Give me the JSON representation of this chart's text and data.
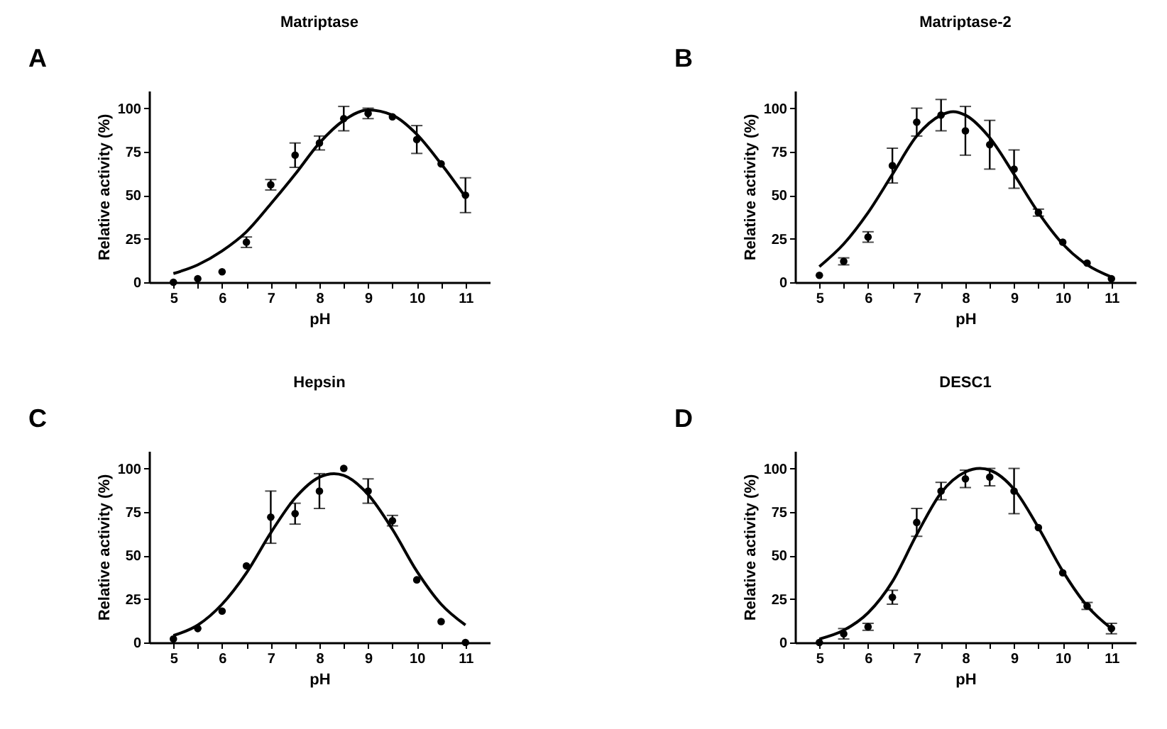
{
  "chart_data": [
    {
      "type": "scatter",
      "title": "Matriptase",
      "xlabel": "pH",
      "ylabel": "Relative activity (%)",
      "annotations": [
        "A"
      ],
      "marker": "circle",
      "xlim": [
        4.5,
        11.5
      ],
      "ylim": [
        0,
        110
      ],
      "xticks": [
        5,
        {
          "value": 5.5,
          "label": null
        },
        6,
        {
          "value": 6.5,
          "label": null
        },
        7,
        {
          "value": 7.5,
          "label": null
        },
        8,
        {
          "value": 8.5,
          "label": null
        },
        9,
        {
          "value": 9.5,
          "label": null
        },
        10,
        {
          "value": 10.5,
          "label": null
        },
        11
      ],
      "yticks": [
        0,
        25,
        50,
        75,
        100
      ],
      "x": [
        5,
        5.5,
        6,
        6.5,
        7,
        7.5,
        8,
        8.5,
        9,
        9.5,
        10,
        10.5,
        11
      ],
      "series": [
        {
          "color": "#000000",
          "values": [
            0,
            2,
            6,
            23,
            56,
            73,
            80,
            94,
            97,
            95,
            82,
            68,
            50
          ],
          "errors": [
            null,
            null,
            null,
            3,
            3,
            7,
            4,
            7,
            3,
            null,
            8,
            null,
            10
          ]
        },
        {
          "type": "line",
          "marker": "none",
          "color": "#000000",
          "x": [
            5,
            5.5,
            6,
            6.5,
            7,
            7.5,
            8,
            8.5,
            9,
            9.5,
            10,
            10.5,
            11
          ],
          "values": [
            5,
            10,
            18,
            29,
            45,
            62,
            80,
            93,
            99,
            96,
            85,
            68,
            49
          ]
        }
      ]
    },
    {
      "type": "scatter",
      "title": "Matriptase-2",
      "xlabel": "pH",
      "ylabel": "Relative activity (%)",
      "annotations": [
        "B"
      ],
      "marker": "circle",
      "xlim": [
        4.5,
        11.5
      ],
      "ylim": [
        0,
        110
      ],
      "xticks": [
        5,
        {
          "value": 5.5,
          "label": null
        },
        6,
        {
          "value": 6.5,
          "label": null
        },
        7,
        {
          "value": 7.5,
          "label": null
        },
        8,
        {
          "value": 8.5,
          "label": null
        },
        9,
        {
          "value": 9.5,
          "label": null
        },
        10,
        {
          "value": 10.5,
          "label": null
        },
        11
      ],
      "yticks": [
        0,
        25,
        50,
        75,
        100
      ],
      "x": [
        5,
        5.5,
        6,
        6.5,
        7,
        7.5,
        8,
        8.5,
        9,
        9.5,
        10,
        10.5,
        11
      ],
      "series": [
        {
          "color": "#000000",
          "values": [
            4,
            12,
            26,
            67,
            92,
            96,
            87,
            79,
            65,
            40,
            23,
            11,
            2
          ],
          "errors": [
            null,
            2,
            3,
            10,
            8,
            9,
            14,
            14,
            11,
            2,
            null,
            null,
            null
          ]
        },
        {
          "type": "line",
          "marker": "none",
          "color": "#000000",
          "x": [
            5,
            5.5,
            6,
            6.5,
            7,
            7.5,
            7.75,
            8,
            8.5,
            9,
            9.5,
            10,
            10.5,
            11
          ],
          "values": [
            9,
            22,
            40,
            62,
            84,
            96,
            98,
            96,
            83,
            62,
            40,
            22,
            10,
            3
          ]
        }
      ]
    },
    {
      "type": "scatter",
      "title": "Hepsin",
      "xlabel": "pH",
      "ylabel": "Relative activity (%)",
      "annotations": [
        "C"
      ],
      "marker": "circle",
      "xlim": [
        4.5,
        11.5
      ],
      "ylim": [
        0,
        110
      ],
      "xticks": [
        5,
        {
          "value": 5.5,
          "label": null
        },
        6,
        {
          "value": 6.5,
          "label": null
        },
        7,
        {
          "value": 7.5,
          "label": null
        },
        8,
        {
          "value": 8.5,
          "label": null
        },
        9,
        {
          "value": 9.5,
          "label": null
        },
        10,
        {
          "value": 10.5,
          "label": null
        },
        11
      ],
      "yticks": [
        0,
        25,
        50,
        75,
        100
      ],
      "x": [
        5,
        5.5,
        6,
        6.5,
        7,
        7.5,
        8,
        8.5,
        9,
        9.5,
        10,
        10.5,
        11
      ],
      "series": [
        {
          "color": "#000000",
          "values": [
            2,
            8,
            18,
            44,
            72,
            74,
            87,
            100,
            87,
            70,
            36,
            12,
            0
          ],
          "errors": [
            null,
            null,
            null,
            null,
            15,
            6,
            10,
            null,
            7,
            3,
            null,
            null,
            null
          ]
        },
        {
          "type": "line",
          "color": "#000000",
          "x": [
            5,
            5.5,
            6,
            6.5,
            7,
            7.5,
            8,
            8.3,
            8.5,
            9,
            9.5,
            10,
            10.5,
            11
          ],
          "marker": "none",
          "values": [
            4,
            10,
            22,
            40,
            63,
            83,
            95,
            97,
            96,
            85,
            65,
            41,
            22,
            10
          ]
        }
      ]
    },
    {
      "type": "scatter",
      "title": "DESC1",
      "xlabel": "pH",
      "ylabel": "Relative activity (%)",
      "annotations": [
        "D"
      ],
      "marker": "circle",
      "xlim": [
        4.5,
        11.5
      ],
      "ylim": [
        0,
        110
      ],
      "xticks": [
        5,
        {
          "value": 5.5,
          "label": null
        },
        6,
        {
          "value": 6.5,
          "label": null
        },
        7,
        {
          "value": 7.5,
          "label": null
        },
        8,
        {
          "value": 8.5,
          "label": null
        },
        9,
        {
          "value": 9.5,
          "label": null
        },
        10,
        {
          "value": 10.5,
          "label": null
        },
        11
      ],
      "yticks": [
        0,
        25,
        50,
        75,
        100
      ],
      "x": [
        5,
        5.5,
        6,
        6.5,
        7,
        7.5,
        8,
        8.5,
        9,
        9.5,
        10,
        10.5,
        11
      ],
      "series": [
        {
          "color": "#000000",
          "values": [
            0,
            5,
            9,
            26,
            69,
            87,
            94,
            95,
            87,
            66,
            40,
            21,
            8
          ],
          "errors": [
            null,
            3,
            2,
            4,
            8,
            5,
            5,
            5,
            13,
            null,
            null,
            2,
            3
          ]
        },
        {
          "type": "line",
          "color": "#000000",
          "x": [
            5,
            5.5,
            6,
            6.5,
            7,
            7.5,
            8,
            8.3,
            8.5,
            9,
            9.5,
            10,
            10.5,
            11
          ],
          "marker": "none",
          "values": [
            2,
            7,
            17,
            35,
            62,
            86,
            98,
            100,
            99,
            88,
            66,
            41,
            21,
            8
          ]
        }
      ]
    }
  ]
}
